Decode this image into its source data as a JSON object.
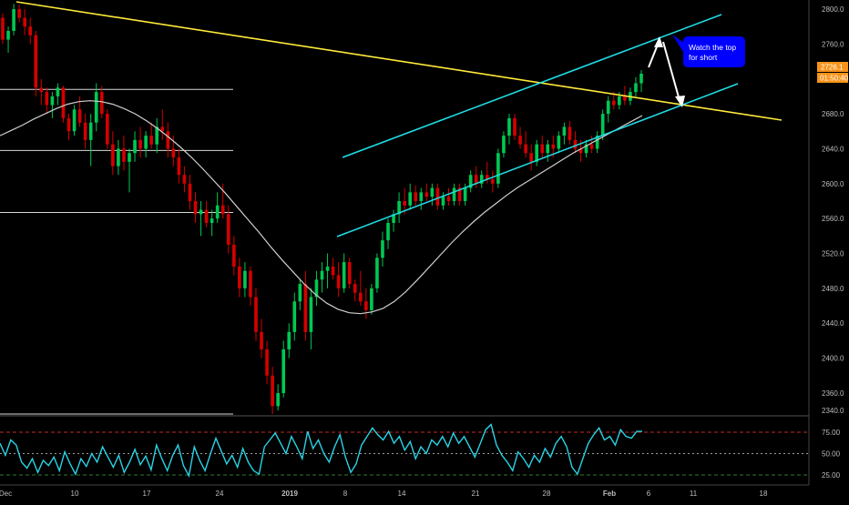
{
  "chart_data": {
    "type": "candlestick",
    "price_axis": {
      "ticks": [
        "2800.0",
        "2760.0",
        "2720.0",
        "2680.0",
        "2640.0",
        "2600.0",
        "2560.0",
        "2520.0",
        "2480.0",
        "2440.0",
        "2400.0",
        "2360.0",
        "2340.0"
      ],
      "tick_values": [
        2800,
        2760,
        2720,
        2680,
        2640,
        2600,
        2560,
        2520,
        2480,
        2440,
        2400,
        2360,
        2340
      ],
      "range": [
        2334,
        2806
      ],
      "last_price_label": "2726.1",
      "countdown_label": "01:50:40"
    },
    "rsi_axis": {
      "ticks": [
        "75.00",
        "50.00",
        "25.00"
      ],
      "tick_values": [
        75,
        50,
        25
      ],
      "range": [
        10,
        95
      ],
      "overbought": 75,
      "oversold": 25
    },
    "time_axis": {
      "labels": [
        "Dec",
        "10",
        "17",
        "24",
        "2019",
        "8",
        "14",
        "21",
        "28",
        "Feb",
        "6",
        "11",
        "18"
      ]
    },
    "candles": [
      [
        2790,
        2795,
        2760,
        2765
      ],
      [
        2765,
        2780,
        2750,
        2775
      ],
      [
        2775,
        2806,
        2770,
        2800
      ],
      [
        2800,
        2805,
        2785,
        2790
      ],
      [
        2790,
        2800,
        2770,
        2780
      ],
      [
        2780,
        2790,
        2760,
        2770
      ],
      [
        2770,
        2775,
        2700,
        2710
      ],
      [
        2710,
        2720,
        2690,
        2705
      ],
      [
        2705,
        2710,
        2680,
        2690
      ],
      [
        2690,
        2705,
        2675,
        2700
      ],
      [
        2700,
        2715,
        2690,
        2710
      ],
      [
        2710,
        2712,
        2670,
        2675
      ],
      [
        2675,
        2680,
        2650,
        2660
      ],
      [
        2660,
        2690,
        2655,
        2685
      ],
      [
        2685,
        2700,
        2665,
        2670
      ],
      [
        2670,
        2680,
        2640,
        2650
      ],
      [
        2650,
        2680,
        2620,
        2670
      ],
      [
        2670,
        2715,
        2660,
        2705
      ],
      [
        2705,
        2712,
        2675,
        2680
      ],
      [
        2680,
        2685,
        2640,
        2645
      ],
      [
        2645,
        2660,
        2610,
        2620
      ],
      [
        2620,
        2650,
        2610,
        2640
      ],
      [
        2640,
        2655,
        2615,
        2625
      ],
      [
        2625,
        2640,
        2590,
        2635
      ],
      [
        2635,
        2660,
        2625,
        2650
      ],
      [
        2650,
        2665,
        2630,
        2640
      ],
      [
        2640,
        2660,
        2630,
        2655
      ],
      [
        2655,
        2670,
        2640,
        2645
      ],
      [
        2645,
        2675,
        2635,
        2665
      ],
      [
        2665,
        2685,
        2650,
        2660
      ],
      [
        2660,
        2670,
        2630,
        2640
      ],
      [
        2640,
        2655,
        2620,
        2630
      ],
      [
        2630,
        2640,
        2600,
        2610
      ],
      [
        2610,
        2620,
        2590,
        2600
      ],
      [
        2600,
        2610,
        2570,
        2580
      ],
      [
        2580,
        2590,
        2555,
        2565
      ],
      [
        2565,
        2580,
        2540,
        2570
      ],
      [
        2570,
        2580,
        2550,
        2555
      ],
      [
        2555,
        2570,
        2540,
        2560
      ],
      [
        2560,
        2590,
        2555,
        2575
      ],
      [
        2575,
        2600,
        2560,
        2565
      ],
      [
        2565,
        2575,
        2520,
        2530
      ],
      [
        2530,
        2540,
        2495,
        2505
      ],
      [
        2505,
        2515,
        2470,
        2480
      ],
      [
        2480,
        2510,
        2470,
        2500
      ],
      [
        2500,
        2505,
        2460,
        2470
      ],
      [
        2470,
        2480,
        2420,
        2430
      ],
      [
        2430,
        2445,
        2400,
        2410
      ],
      [
        2410,
        2420,
        2370,
        2380
      ],
      [
        2380,
        2390,
        2336,
        2345
      ],
      [
        2345,
        2370,
        2340,
        2360
      ],
      [
        2360,
        2420,
        2355,
        2410
      ],
      [
        2410,
        2440,
        2400,
        2430
      ],
      [
        2430,
        2475,
        2420,
        2465
      ],
      [
        2465,
        2490,
        2455,
        2485
      ],
      [
        2485,
        2500,
        2420,
        2430
      ],
      [
        2430,
        2480,
        2410,
        2470
      ],
      [
        2470,
        2500,
        2460,
        2490
      ],
      [
        2490,
        2510,
        2475,
        2500
      ],
      [
        2500,
        2520,
        2480,
        2505
      ],
      [
        2505,
        2515,
        2490,
        2495
      ],
      [
        2495,
        2510,
        2470,
        2480
      ],
      [
        2480,
        2520,
        2475,
        2510
      ],
      [
        2510,
        2515,
        2480,
        2485
      ],
      [
        2485,
        2490,
        2465,
        2475
      ],
      [
        2475,
        2500,
        2460,
        2465
      ],
      [
        2465,
        2480,
        2445,
        2455
      ],
      [
        2455,
        2485,
        2450,
        2480
      ],
      [
        2480,
        2520,
        2475,
        2515
      ],
      [
        2515,
        2545,
        2505,
        2535
      ],
      [
        2535,
        2560,
        2525,
        2555
      ],
      [
        2555,
        2570,
        2545,
        2565
      ],
      [
        2565,
        2590,
        2555,
        2580
      ],
      [
        2580,
        2595,
        2565,
        2575
      ],
      [
        2575,
        2600,
        2570,
        2590
      ],
      [
        2590,
        2598,
        2575,
        2580
      ],
      [
        2580,
        2595,
        2570,
        2590
      ],
      [
        2590,
        2600,
        2580,
        2585
      ],
      [
        2585,
        2600,
        2575,
        2595
      ],
      [
        2595,
        2600,
        2570,
        2575
      ],
      [
        2575,
        2590,
        2570,
        2585
      ],
      [
        2585,
        2595,
        2575,
        2580
      ],
      [
        2580,
        2600,
        2575,
        2595
      ],
      [
        2595,
        2600,
        2575,
        2580
      ],
      [
        2580,
        2600,
        2575,
        2595
      ],
      [
        2595,
        2615,
        2590,
        2610
      ],
      [
        2610,
        2620,
        2595,
        2600
      ],
      [
        2600,
        2615,
        2595,
        2610
      ],
      [
        2610,
        2625,
        2600,
        2605
      ],
      [
        2605,
        2615,
        2590,
        2600
      ],
      [
        2600,
        2640,
        2595,
        2635
      ],
      [
        2635,
        2660,
        2630,
        2655
      ],
      [
        2655,
        2680,
        2645,
        2675
      ],
      [
        2675,
        2680,
        2650,
        2655
      ],
      [
        2655,
        2665,
        2640,
        2645
      ],
      [
        2645,
        2660,
        2630,
        2635
      ],
      [
        2635,
        2645,
        2615,
        2625
      ],
      [
        2625,
        2650,
        2620,
        2645
      ],
      [
        2645,
        2655,
        2630,
        2635
      ],
      [
        2635,
        2650,
        2625,
        2645
      ],
      [
        2645,
        2655,
        2630,
        2640
      ],
      [
        2640,
        2660,
        2635,
        2655
      ],
      [
        2655,
        2670,
        2645,
        2665
      ],
      [
        2665,
        2672,
        2645,
        2650
      ],
      [
        2650,
        2660,
        2635,
        2640
      ],
      [
        2640,
        2650,
        2625,
        2635
      ],
      [
        2635,
        2650,
        2630,
        2645
      ],
      [
        2645,
        2655,
        2635,
        2640
      ],
      [
        2640,
        2660,
        2635,
        2655
      ],
      [
        2655,
        2685,
        2650,
        2680
      ],
      [
        2680,
        2700,
        2670,
        2695
      ],
      [
        2695,
        2705,
        2685,
        2690
      ],
      [
        2690,
        2705,
        2685,
        2700
      ],
      [
        2700,
        2712,
        2690,
        2695
      ],
      [
        2695,
        2710,
        2690,
        2705
      ],
      [
        2705,
        2722,
        2700,
        2715
      ],
      [
        2715,
        2730,
        2705,
        2726
      ]
    ],
    "moving_average": [
      2655,
      2661,
      2667,
      2674,
      2680,
      2686,
      2691,
      2694,
      2695,
      2694,
      2691,
      2686,
      2680,
      2672,
      2663,
      2653,
      2642,
      2630,
      2617,
      2603,
      2589,
      2574,
      2559,
      2544,
      2528,
      2513,
      2499,
      2485,
      2473,
      2463,
      2456,
      2452,
      2451,
      2453,
      2457,
      2465,
      2476,
      2489,
      2503,
      2517,
      2531,
      2544,
      2556,
      2567,
      2577,
      2587,
      2596,
      2604,
      2612,
      2620,
      2628,
      2636,
      2643,
      2650,
      2657,
      2664,
      2671,
      2678
    ],
    "rsi": [
      62,
      48,
      66,
      60,
      40,
      33,
      44,
      28,
      42,
      36,
      46,
      30,
      52,
      38,
      26,
      44,
      35,
      50,
      40,
      58,
      46,
      34,
      48,
      28,
      40,
      55,
      37,
      47,
      31,
      60,
      44,
      30,
      48,
      60,
      36,
      24,
      58,
      42,
      30,
      50,
      68,
      53,
      38,
      48,
      34,
      56,
      40,
      30,
      26,
      58,
      66,
      74,
      62,
      50,
      70,
      58,
      44,
      76,
      56,
      66,
      50,
      40,
      58,
      72,
      46,
      28,
      38,
      60,
      70,
      80,
      72,
      66,
      76,
      62,
      70,
      54,
      64,
      44,
      58,
      50,
      66,
      60,
      70,
      58,
      74,
      62,
      70,
      58,
      46,
      62,
      78,
      84,
      60,
      48,
      40,
      30,
      52,
      44,
      34,
      48,
      40,
      56,
      46,
      62,
      70,
      58,
      34,
      26,
      44,
      62,
      72,
      80,
      66,
      70,
      60,
      78,
      70,
      68,
      76,
      76
    ],
    "trendlines": [
      {
        "name": "yellow-descending-resistance",
        "color": "#ffeb3b",
        "from": [
          "Dec",
          "2808"
        ],
        "to": [
          "18",
          "2660"
        ]
      },
      {
        "name": "cyan-channel-top",
        "color": "#1fdde6",
        "from": [
          "8",
          "2617"
        ],
        "to": [
          "11",
          "2796"
        ]
      },
      {
        "name": "cyan-channel-bottom",
        "color": "#1fdde6",
        "from": [
          "8",
          "2525"
        ],
        "to": [
          "11",
          "2698"
        ]
      }
    ],
    "horizontal_levels": [
      2708,
      2638,
      2567,
      2336
    ],
    "annotation": {
      "text_line1": "Watch the top",
      "text_line2": "for short",
      "bg": "#0000ff"
    },
    "colors": {
      "up": "#00c853",
      "down": "#d50000",
      "ma": "#cfcfcf",
      "rsi": "#29d3e5",
      "ob": "#c62828",
      "os": "#2e7d32",
      "mid": "#9e9e9e"
    }
  }
}
